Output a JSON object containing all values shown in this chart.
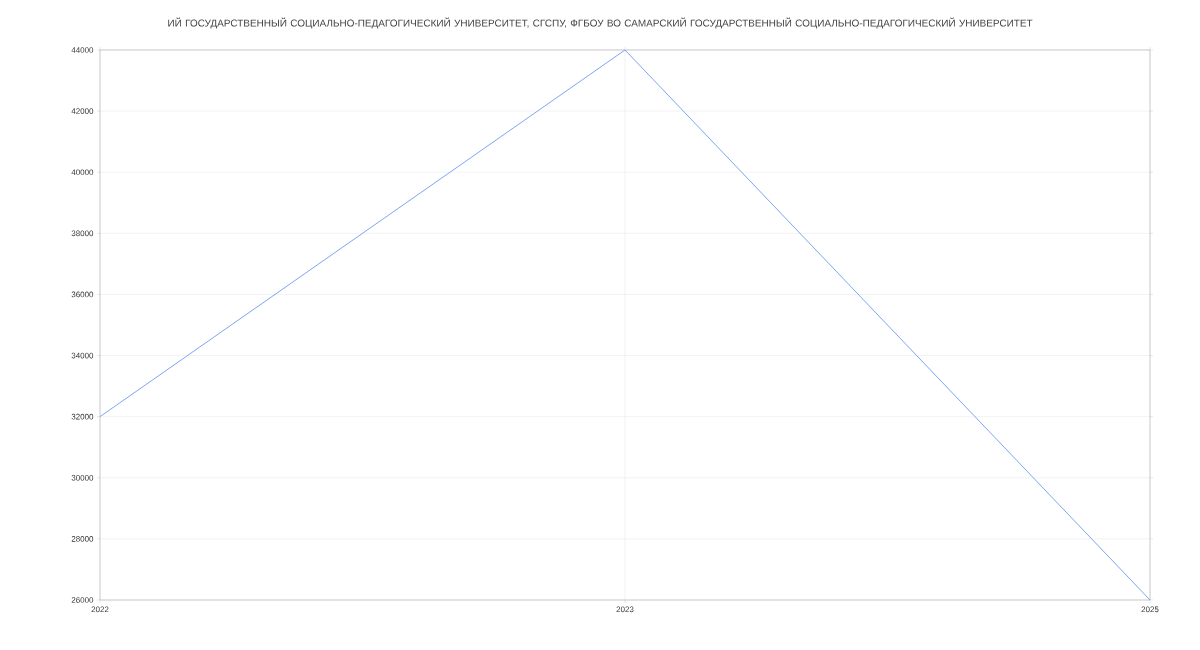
{
  "chart_data": {
    "type": "line",
    "title": "ИЙ ГОСУДАРСТВЕННЫЙ СОЦИАЛЬНО-ПЕДАГОГИЧЕСКИЙ УНИВЕРСИТЕТ, СГСПУ, ФГБОУ ВО САМАРСКИЙ ГОСУДАРСТВЕННЫЙ СОЦИАЛЬНО-ПЕДАГОГИЧЕСКИЙ УНИВЕРСИТЕТ",
    "categories": [
      "2022",
      "2023",
      "2025"
    ],
    "series": [
      {
        "color": "#6d9cf2",
        "values": [
          32000,
          44000,
          26000
        ]
      }
    ],
    "ylim": [
      26000,
      44000
    ],
    "yticks": [
      26000,
      28000,
      30000,
      32000,
      34000,
      36000,
      38000,
      40000,
      42000,
      44000
    ],
    "grid": true,
    "marker": "none",
    "line_style": "solid"
  }
}
